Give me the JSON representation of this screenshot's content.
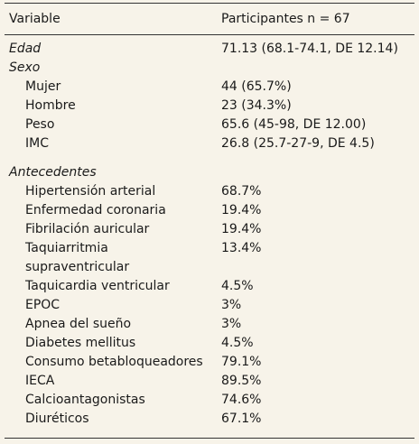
{
  "table": {
    "header": [
      "Variable",
      "Participantes n = 67"
    ],
    "groups": [
      {
        "title": "Edad",
        "value": "71.13 (68.1-74.1, DE 12.14)"
      },
      {
        "title": "Sexo",
        "rows": [
          [
            "Mujer",
            "44 (65.7%)"
          ],
          [
            "Hombre",
            "23 (34.3%)"
          ],
          [
            "Peso",
            "65.6 (45-98, DE 12.00)"
          ],
          [
            "IMC",
            "26.8 (25.7-27-9, DE 4.5)"
          ]
        ]
      },
      {
        "title": "Antecedentes",
        "rows": [
          [
            "Hipertensión arterial",
            "68.7%"
          ],
          [
            "Enfermedad coronaria",
            "19.4%"
          ],
          [
            "Fibrilación auricular",
            "19.4%"
          ],
          [
            "Taquiarritmia supraventricular",
            "13.4%"
          ],
          [
            "Taquicardia ventricular",
            "4.5%"
          ],
          [
            "EPOC",
            "3%"
          ],
          [
            "Apnea del sueño",
            "3%"
          ],
          [
            "Diabetes mellitus",
            "4.5%"
          ],
          [
            "Consumo betabloqueadores",
            "79.1%"
          ],
          [
            "IECA",
            "89.5%"
          ],
          [
            "Calcioantagonistas",
            "74.6%"
          ],
          [
            "Diuréticos",
            "67.1%"
          ]
        ]
      }
    ]
  }
}
